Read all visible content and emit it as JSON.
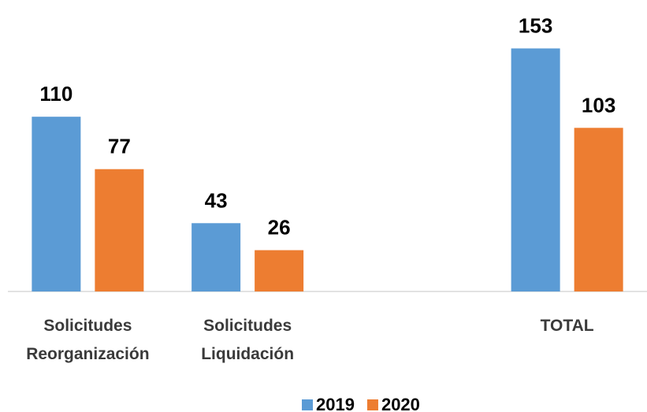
{
  "chart_data": {
    "type": "bar",
    "categories": [
      "Solicitudes Reorganización",
      "Solicitudes Liquidación",
      null,
      "TOTAL"
    ],
    "series": [
      {
        "name": "2019",
        "color": "#5b9bd5",
        "values": [
          110,
          43,
          null,
          153
        ]
      },
      {
        "name": "2020",
        "color": "#ed7d31",
        "values": [
          77,
          26,
          null,
          103
        ]
      }
    ],
    "ylim": [
      0,
      181
    ],
    "legend": "bottom"
  }
}
